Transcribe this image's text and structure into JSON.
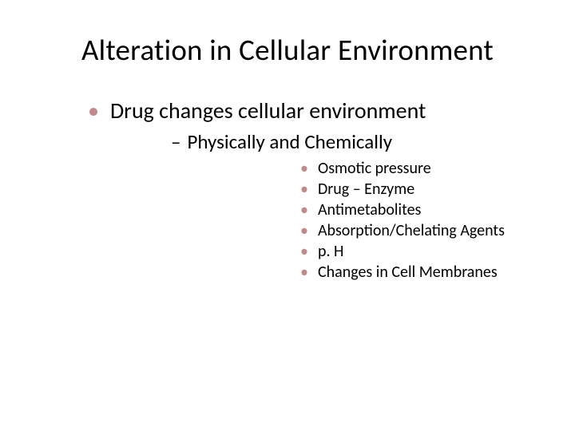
{
  "slide": {
    "title": "Alteration in Cellular Environment",
    "level1": {
      "bullet": "•",
      "text": "Drug changes cellular environment"
    },
    "level2": {
      "dash": "–",
      "text": "Physically and Chemically"
    },
    "level3": {
      "bullet": "•",
      "items": [
        "Osmotic pressure",
        "Drug – Enzyme",
        "Antimetabolites",
        "Absorption/Chelating Agents",
        "p. H",
        "Changes in Cell Membranes"
      ]
    },
    "colors": {
      "bullet_accent": "#c08a8a",
      "text": "#000000",
      "background": "#ffffff"
    },
    "fonts": {
      "title_size": 37,
      "level1_size": 28,
      "level2_size": 25,
      "level3_size": 20
    }
  }
}
